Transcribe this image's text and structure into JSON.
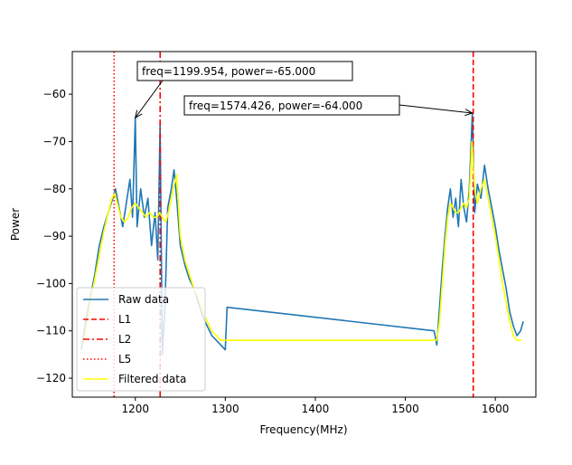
{
  "chart_data": {
    "type": "line",
    "xlabel": "Frequency(MHz)",
    "ylabel": "Power",
    "xlim": [
      1130,
      1645
    ],
    "ylim": [
      -124,
      -51
    ],
    "xticks": [
      1200,
      1300,
      1400,
      1500,
      1600
    ],
    "yticks": [
      -120,
      -110,
      -100,
      -90,
      -80,
      -70,
      -60
    ],
    "grid": false,
    "legend_position": "lower-left",
    "vlines": [
      {
        "name": "L1",
        "x": 1575.42,
        "color": "#ff0000",
        "style": "dashed"
      },
      {
        "name": "L2",
        "x": 1227.6,
        "color": "#ff0000",
        "style": "dashdot"
      },
      {
        "name": "L5",
        "x": 1176.45,
        "color": "#ff0000",
        "style": "dotted"
      }
    ],
    "series": [
      {
        "name": "Raw data",
        "color": "#1f77b4",
        "x": [
          1140,
          1145,
          1150,
          1155,
          1160,
          1165,
          1170,
          1175,
          1178,
          1182,
          1186,
          1190,
          1194,
          1197,
          1199.954,
          1202,
          1206,
          1210,
          1214,
          1218,
          1222,
          1225,
          1227.6,
          1230,
          1233,
          1236,
          1240,
          1243,
          1246,
          1250,
          1255,
          1260,
          1265,
          1270,
          1275,
          1280,
          1285,
          1290,
          1295,
          1300,
          1302,
          1532,
          1535,
          1538,
          1541,
          1544,
          1547,
          1550,
          1553,
          1556,
          1559,
          1562,
          1565,
          1568,
          1571,
          1574.426,
          1577,
          1580,
          1584,
          1588,
          1592,
          1596,
          1600,
          1604,
          1608,
          1612,
          1616,
          1620,
          1624,
          1628,
          1631
        ],
        "values": [
          -114,
          -108,
          -103,
          -98,
          -92,
          -88,
          -85,
          -82,
          -80,
          -84,
          -88,
          -83,
          -78,
          -86,
          -65,
          -88,
          -80,
          -86,
          -82,
          -92,
          -85,
          -95,
          -66,
          -115,
          -105,
          -84,
          -80,
          -76,
          -82,
          -92,
          -96,
          -99,
          -101,
          -104,
          -107,
          -109,
          -111,
          -112,
          -113,
          -114,
          -105,
          -110,
          -113,
          -105,
          -97,
          -90,
          -84,
          -80,
          -86,
          -82,
          -88,
          -78,
          -84,
          -87,
          -80,
          -64,
          -85,
          -79,
          -82,
          -75,
          -80,
          -84,
          -88,
          -93,
          -97,
          -101,
          -106,
          -109,
          -111,
          -110,
          -108
        ]
      },
      {
        "name": "Filtered data",
        "color": "#ffff00",
        "x": [
          1142,
          1146,
          1150,
          1155,
          1160,
          1165,
          1170,
          1174,
          1177,
          1180,
          1184,
          1188,
          1192,
          1196,
          1200,
          1204,
          1208,
          1212,
          1216,
          1220,
          1224,
          1227,
          1230,
          1234,
          1238,
          1242,
          1246,
          1250,
          1255,
          1260,
          1265,
          1270,
          1275,
          1280,
          1285,
          1290,
          1295,
          1300,
          1535,
          1538,
          1541,
          1544,
          1547,
          1550,
          1553,
          1556,
          1559,
          1562,
          1565,
          1568,
          1571,
          1574,
          1577,
          1580,
          1584,
          1588,
          1592,
          1596,
          1600,
          1604,
          1608,
          1612,
          1616,
          1620,
          1624,
          1629
        ],
        "values": [
          -113,
          -109,
          -104,
          -99,
          -94,
          -89,
          -85,
          -82,
          -81,
          -83,
          -86,
          -87,
          -86,
          -84,
          -83,
          -84,
          -85,
          -86,
          -85,
          -86,
          -86,
          -85,
          -86,
          -87,
          -84,
          -80,
          -77,
          -90,
          -95,
          -98,
          -101,
          -103,
          -106,
          -108,
          -110,
          -111,
          -112,
          -112,
          -112,
          -108,
          -100,
          -92,
          -86,
          -83,
          -84,
          -85,
          -85,
          -84,
          -83,
          -84,
          -82,
          -70,
          -80,
          -83,
          -80,
          -78,
          -82,
          -86,
          -90,
          -95,
          -100,
          -104,
          -108,
          -111,
          -112,
          -112
        ]
      }
    ],
    "annotations": [
      {
        "text": "freq=1199.954, power=-65.000",
        "x": 1199.954,
        "y": -65
      },
      {
        "text": "freq=1574.426, power=-64.000",
        "x": 1574.426,
        "y": -64
      }
    ],
    "legend": [
      "Raw data",
      "L1",
      "L2",
      "L5",
      "Filtered data"
    ]
  }
}
